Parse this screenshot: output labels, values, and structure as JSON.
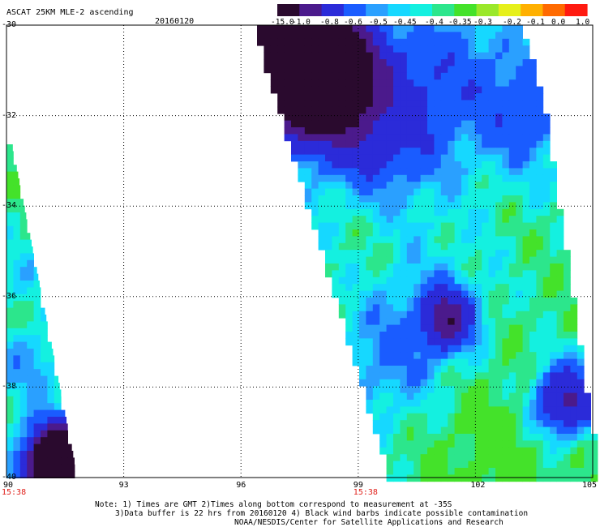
{
  "header": {
    "title": "ASCAT 25KM MLE-2 ascending",
    "date": "20160120"
  },
  "colorbar": {
    "labels": [
      "-15.0",
      "-1.0",
      "-0.8",
      "-0.6",
      "-0.5",
      "-0.45",
      "-0.4",
      "-0.35",
      "-0.3",
      "-0.2",
      "-0.1",
      "0.0",
      "1.0"
    ],
    "colors": [
      "#2a0a2e",
      "#4b1a8c",
      "#2b2bd9",
      "#1a5cff",
      "#2aa0ff",
      "#16d8ff",
      "#14f0e0",
      "#2ce68c",
      "#44e22a",
      "#9ae82a",
      "#e6f01a",
      "#ffb000",
      "#ff6a00",
      "#ff1a10"
    ]
  },
  "axes": {
    "lat_labels": [
      "-30",
      "-32",
      "-34",
      "-36",
      "-38",
      "-40"
    ],
    "lon_labels": [
      "90",
      "93",
      "96",
      "99",
      "102",
      "105"
    ],
    "lat_range": [
      -40,
      -30
    ],
    "lon_range": [
      90,
      105
    ]
  },
  "pass_times": [
    {
      "lon": 90,
      "label": "15:38"
    },
    {
      "lon": 99,
      "label": "15:38"
    }
  ],
  "notes": {
    "line1": "Note: 1) Times are GMT 2)Times along bottom correspond to measurement at -35S",
    "line2": "3)Data buffer is 22 hrs from 20160120 4) Black wind barbs indicate possible contamination",
    "line3": "NOAA/NESDIS/Center for Satellite Applications and Research"
  },
  "chart_data": {
    "type": "heatmap",
    "title": "ASCAT 25KM MLE-2 ascending",
    "date": "20160120",
    "x_axis": {
      "label": "",
      "range": [
        90,
        105
      ],
      "ticks": [
        90,
        93,
        96,
        99,
        102,
        105
      ]
    },
    "y_axis": {
      "label": "",
      "range": [
        -40,
        -30
      ],
      "ticks": [
        -30,
        -32,
        -34,
        -36,
        -38,
        -40
      ]
    },
    "color_scale": [
      -15.0,
      -1.0,
      -0.8,
      -0.6,
      -0.5,
      -0.45,
      -0.4,
      -0.35,
      -0.3,
      -0.2,
      -0.1,
      0.0,
      1.0
    ],
    "swaths": [
      {
        "name": "west swath",
        "lon_range": [
          90.0,
          91.7
        ],
        "lat_range": [
          -40,
          -32.7
        ]
      },
      {
        "name": "east swath",
        "lon_range": [
          96.3,
          104.7
        ],
        "lat_range": [
          -40,
          -30
        ]
      }
    ],
    "features": [
      {
        "desc": "low values (-15 to -0.8)",
        "lon": 97.5,
        "lat": -30.8
      },
      {
        "desc": "low values (-0.6)",
        "lon": 101.2,
        "lat": -36.5
      },
      {
        "desc": "low values (-0.8)",
        "lon": 104.2,
        "lat": -38.3
      },
      {
        "desc": "low values (-15 to -0.8)",
        "lon": 91.3,
        "lat": -39.6
      }
    ],
    "grid": true
  }
}
